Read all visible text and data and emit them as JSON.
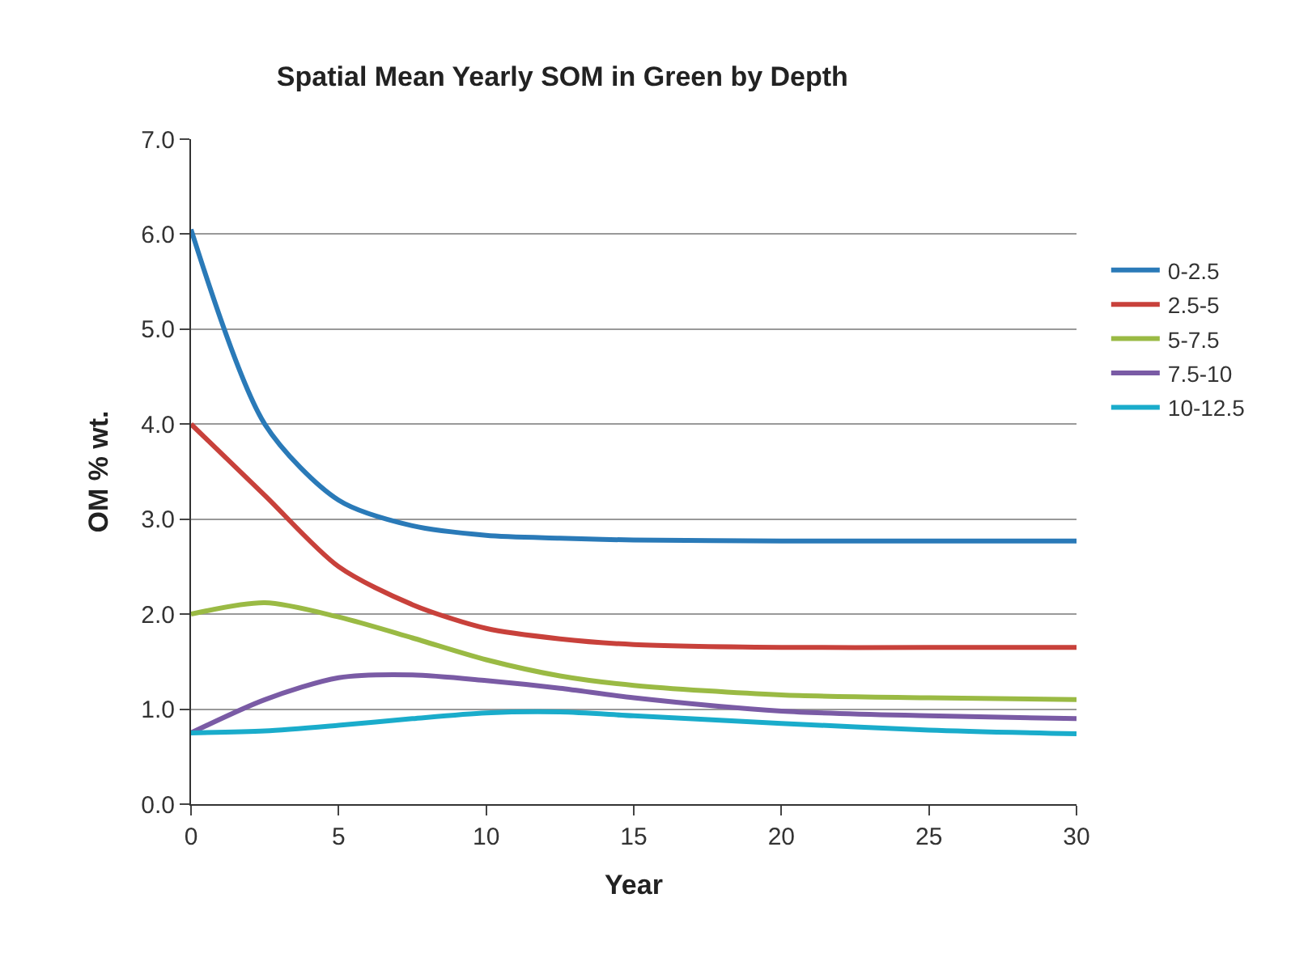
{
  "chart_data": {
    "type": "line",
    "title": "Spatial Mean Yearly SOM in Green by Depth",
    "xlabel": "Year",
    "ylabel": "OM % wt.",
    "x": [
      0,
      2.5,
      5,
      7.5,
      10,
      12.5,
      15,
      20,
      25,
      30
    ],
    "series": [
      {
        "name": "0-2.5",
        "color": "#2a7ab8",
        "values": [
          6.05,
          4.0,
          3.2,
          2.93,
          2.83,
          2.8,
          2.78,
          2.77,
          2.77,
          2.77
        ]
      },
      {
        "name": "2.5-5",
        "color": "#c8413b",
        "values": [
          4.0,
          3.25,
          2.5,
          2.1,
          1.85,
          1.74,
          1.68,
          1.65,
          1.65,
          1.65
        ]
      },
      {
        "name": "5-7.5",
        "color": "#9aba44",
        "values": [
          2.0,
          2.12,
          1.97,
          1.75,
          1.52,
          1.35,
          1.25,
          1.15,
          1.12,
          1.1
        ]
      },
      {
        "name": "7.5-10",
        "color": "#7a5ba5",
        "values": [
          0.75,
          1.1,
          1.33,
          1.36,
          1.3,
          1.22,
          1.12,
          0.98,
          0.93,
          0.9
        ]
      },
      {
        "name": "10-12.5",
        "color": "#1aaccb",
        "values": [
          0.75,
          0.77,
          0.83,
          0.9,
          0.96,
          0.97,
          0.93,
          0.85,
          0.78,
          0.74
        ]
      }
    ],
    "xlim": [
      0,
      30
    ],
    "xticks": [
      0,
      5,
      10,
      15,
      20,
      25,
      30
    ],
    "ylim": [
      0,
      7
    ],
    "yticks": [
      {
        "value": 0,
        "label": "0.0"
      },
      {
        "value": 1,
        "label": "1.0"
      },
      {
        "value": 2,
        "label": "2.0"
      },
      {
        "value": 3,
        "label": "3.0"
      },
      {
        "value": 4,
        "label": "4.0"
      },
      {
        "value": 5,
        "label": "5.0"
      },
      {
        "value": 6,
        "label": "6.0"
      },
      {
        "value": 7,
        "label": "7.0"
      }
    ],
    "grid": "y",
    "legend": "right",
    "marker": "none",
    "line_style": "solid"
  }
}
